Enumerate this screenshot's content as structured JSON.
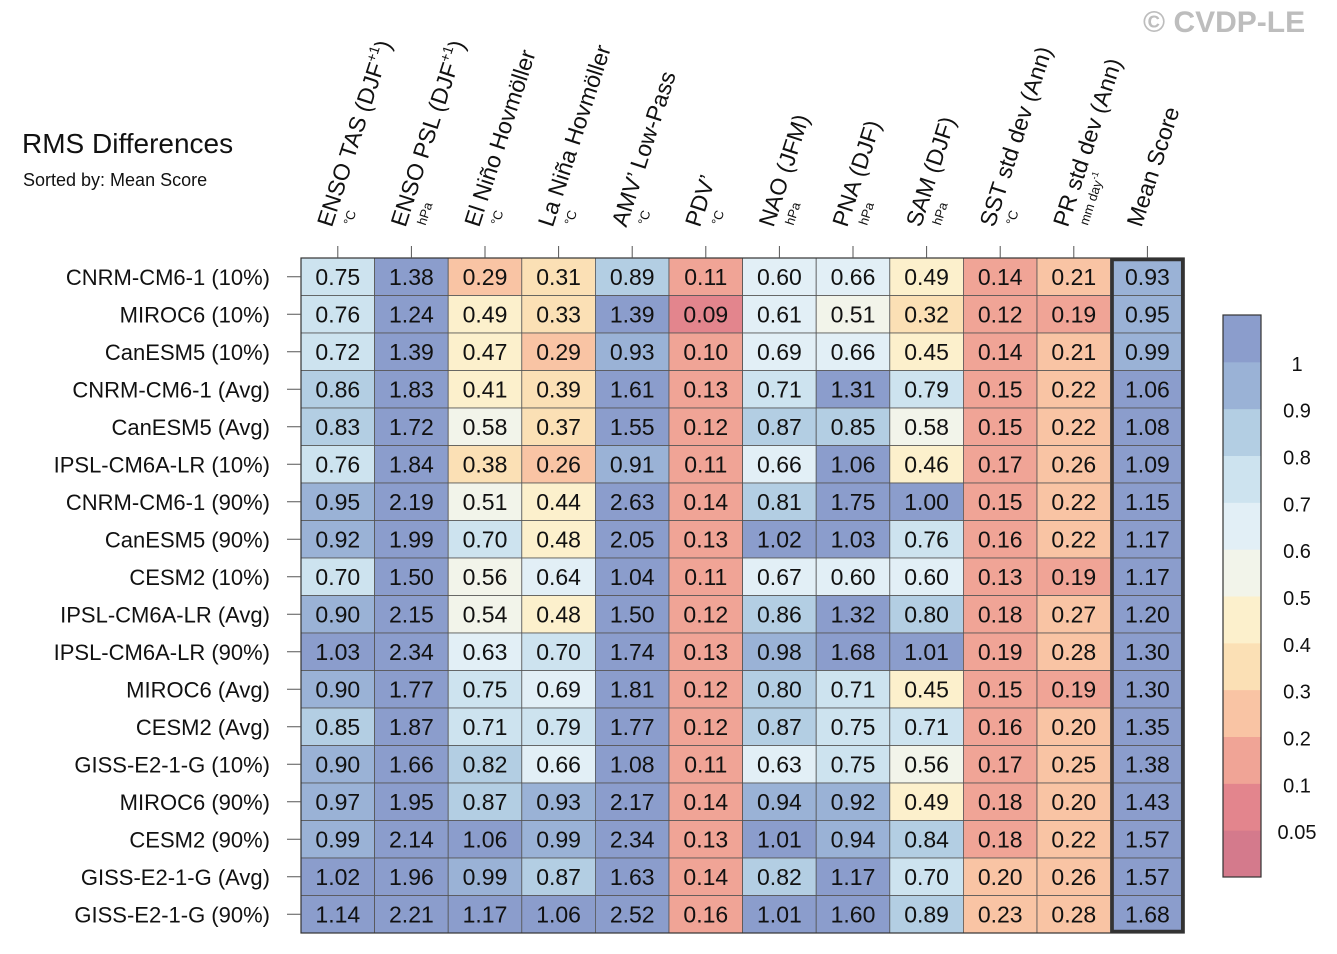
{
  "title": "RMS Differences",
  "subtitle": "Sorted by: Mean Score",
  "watermark": "© CVDP-LE",
  "chart_data": {
    "type": "heatmap",
    "columns": [
      {
        "label": "ENSO TAS (DJF",
        "sup": "+1",
        "close": ")",
        "unit": "°C"
      },
      {
        "label": "ENSO PSL (DJF",
        "sup": "+1",
        "close": ")",
        "unit": "hPa"
      },
      {
        "label": "El Niño Hovmöller",
        "unit": "°C"
      },
      {
        "label": "La Niña Hovmöller",
        "unit": "°C"
      },
      {
        "label": "AMV’ Low-Pass",
        "unit": "°C"
      },
      {
        "label": "PDV’",
        "unit": "°C"
      },
      {
        "label": "NAO (JFM)",
        "unit": "hPa"
      },
      {
        "label": "PNA (DJF)",
        "unit": "hPa"
      },
      {
        "label": "SAM (DJF)",
        "unit": "hPa"
      },
      {
        "label": "SST std dev (Ann)",
        "unit": "°C"
      },
      {
        "label": "PR std dev (Ann)",
        "unit": "mm day",
        "unit_sup": "-1"
      },
      {
        "label": "Mean Score",
        "unit": ""
      }
    ],
    "rows": [
      "CNRM-CM6-1 (10%)",
      "MIROC6 (10%)",
      "CanESM5 (10%)",
      "CNRM-CM6-1 (Avg)",
      "CanESM5 (Avg)",
      "IPSL-CM6A-LR (10%)",
      "CNRM-CM6-1 (90%)",
      "CanESM5 (90%)",
      "CESM2 (10%)",
      "IPSL-CM6A-LR (Avg)",
      "IPSL-CM6A-LR (90%)",
      "MIROC6 (Avg)",
      "CESM2 (Avg)",
      "GISS-E2-1-G (10%)",
      "MIROC6 (90%)",
      "CESM2 (90%)",
      "GISS-E2-1-G (Avg)",
      "GISS-E2-1-G (90%)"
    ],
    "values": [
      [
        "0.75",
        "1.38",
        "0.29",
        "0.31",
        "0.89",
        "0.11",
        "0.60",
        "0.66",
        "0.49",
        "0.14",
        "0.21",
        "0.93"
      ],
      [
        "0.76",
        "1.24",
        "0.49",
        "0.33",
        "1.39",
        "0.09",
        "0.61",
        "0.51",
        "0.32",
        "0.12",
        "0.19",
        "0.95"
      ],
      [
        "0.72",
        "1.39",
        "0.47",
        "0.29",
        "0.93",
        "0.10",
        "0.69",
        "0.66",
        "0.45",
        "0.14",
        "0.21",
        "0.99"
      ],
      [
        "0.86",
        "1.83",
        "0.41",
        "0.39",
        "1.61",
        "0.13",
        "0.71",
        "1.31",
        "0.79",
        "0.15",
        "0.22",
        "1.06"
      ],
      [
        "0.83",
        "1.72",
        "0.58",
        "0.37",
        "1.55",
        "0.12",
        "0.87",
        "0.85",
        "0.58",
        "0.15",
        "0.22",
        "1.08"
      ],
      [
        "0.76",
        "1.84",
        "0.38",
        "0.26",
        "0.91",
        "0.11",
        "0.66",
        "1.06",
        "0.46",
        "0.17",
        "0.26",
        "1.09"
      ],
      [
        "0.95",
        "2.19",
        "0.51",
        "0.44",
        "2.63",
        "0.14",
        "0.81",
        "1.75",
        "1.00",
        "0.15",
        "0.22",
        "1.15"
      ],
      [
        "0.92",
        "1.99",
        "0.70",
        "0.48",
        "2.05",
        "0.13",
        "1.02",
        "1.03",
        "0.76",
        "0.16",
        "0.22",
        "1.17"
      ],
      [
        "0.70",
        "1.50",
        "0.56",
        "0.64",
        "1.04",
        "0.11",
        "0.67",
        "0.60",
        "0.60",
        "0.13",
        "0.19",
        "1.17"
      ],
      [
        "0.90",
        "2.15",
        "0.54",
        "0.48",
        "1.50",
        "0.12",
        "0.86",
        "1.32",
        "0.80",
        "0.18",
        "0.27",
        "1.20"
      ],
      [
        "1.03",
        "2.34",
        "0.63",
        "0.70",
        "1.74",
        "0.13",
        "0.98",
        "1.68",
        "1.01",
        "0.19",
        "0.28",
        "1.30"
      ],
      [
        "0.90",
        "1.77",
        "0.75",
        "0.69",
        "1.81",
        "0.12",
        "0.80",
        "0.71",
        "0.45",
        "0.15",
        "0.19",
        "1.30"
      ],
      [
        "0.85",
        "1.87",
        "0.71",
        "0.79",
        "1.77",
        "0.12",
        "0.87",
        "0.75",
        "0.71",
        "0.16",
        "0.20",
        "1.35"
      ],
      [
        "0.90",
        "1.66",
        "0.82",
        "0.66",
        "1.08",
        "0.11",
        "0.63",
        "0.75",
        "0.56",
        "0.17",
        "0.25",
        "1.38"
      ],
      [
        "0.97",
        "1.95",
        "0.87",
        "0.93",
        "2.17",
        "0.14",
        "0.94",
        "0.92",
        "0.49",
        "0.18",
        "0.20",
        "1.43"
      ],
      [
        "0.99",
        "2.14",
        "1.06",
        "0.99",
        "2.34",
        "0.13",
        "1.01",
        "0.94",
        "0.84",
        "0.18",
        "0.22",
        "1.57"
      ],
      [
        "1.02",
        "1.96",
        "0.99",
        "0.87",
        "1.63",
        "0.14",
        "0.82",
        "1.17",
        "0.70",
        "0.20",
        "0.26",
        "1.57"
      ],
      [
        "1.14",
        "2.21",
        "1.17",
        "1.06",
        "2.52",
        "0.16",
        "1.01",
        "1.60",
        "0.89",
        "0.23",
        "0.28",
        "1.68"
      ]
    ],
    "colorbar": {
      "bounds": [
        0.05,
        0.1,
        0.2,
        0.3,
        0.4,
        0.5,
        0.6,
        0.7,
        0.8,
        0.9,
        1
      ],
      "labels": [
        "0.05",
        "0.1",
        "0.2",
        "0.3",
        "0.4",
        "0.5",
        "0.6",
        "0.7",
        "0.8",
        "0.9",
        "1"
      ],
      "colors": [
        "#d47a8c",
        "#e3858d",
        "#f0a496",
        "#f9c4a4",
        "#fbe0b5",
        "#fcf0cc",
        "#f2f4ea",
        "#e2eff6",
        "#cde3ef",
        "#b3cee3",
        "#9ab2d6",
        "#8b9dcc"
      ]
    },
    "highlighted_column": "Mean Score"
  }
}
